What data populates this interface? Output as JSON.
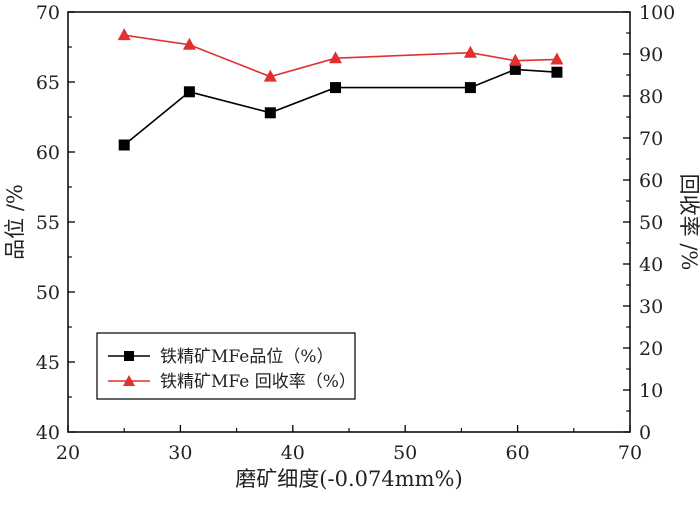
{
  "chart_data": {
    "type": "line",
    "xlabel": "磨矿细度(-0.074mm%)",
    "ylabel": "品位 /%",
    "y2label": "回收率 /%",
    "xlim": [
      20,
      70
    ],
    "ylim": [
      40,
      70
    ],
    "y2lim": [
      0,
      100
    ],
    "xticks": [
      20,
      30,
      40,
      50,
      60,
      70
    ],
    "yticks": [
      40,
      45,
      50,
      55,
      60,
      65,
      70
    ],
    "y2ticks": [
      0,
      10,
      20,
      30,
      40,
      50,
      60,
      70,
      80,
      90,
      100
    ],
    "grid": false,
    "legend_position": "lower-left",
    "x": [
      25,
      30.8,
      38,
      43.8,
      55.8,
      59.8,
      63.5
    ],
    "series": [
      {
        "name": "铁精矿MFe品位（%）",
        "axis": "left",
        "marker": "square",
        "color": "#000000",
        "values": [
          60.5,
          64.3,
          62.8,
          64.6,
          64.6,
          65.9,
          65.7
        ]
      },
      {
        "name": "铁精矿MFe 回收率（%）",
        "axis": "right",
        "marker": "triangle",
        "color": "#e03030",
        "values": [
          94.5,
          92.2,
          84.6,
          89.0,
          90.3,
          88.4,
          88.7
        ]
      }
    ]
  }
}
